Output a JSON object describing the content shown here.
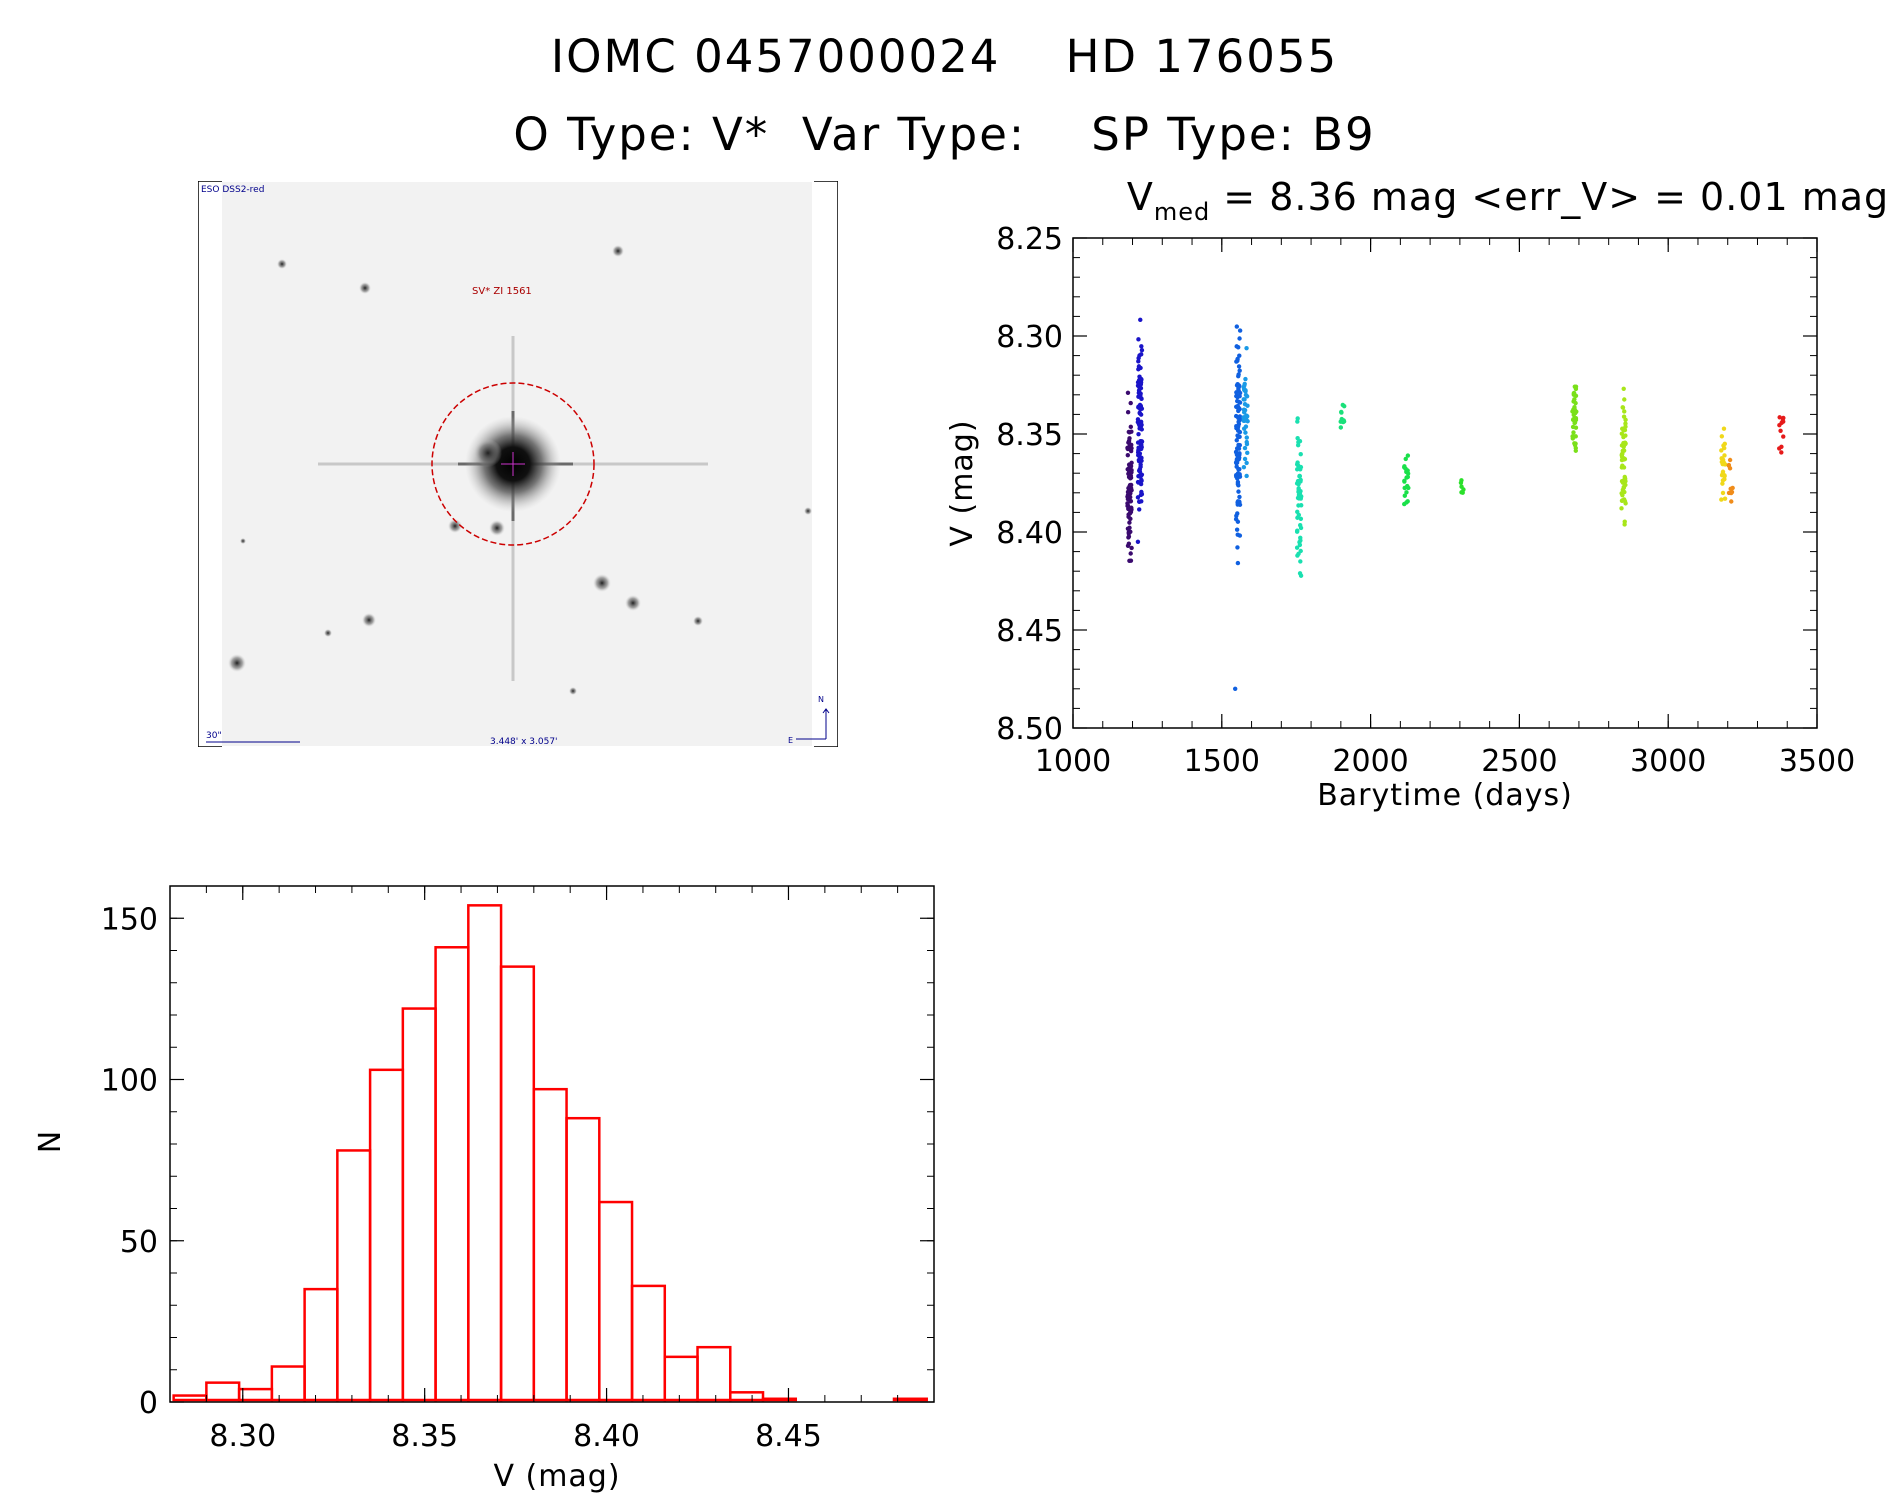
{
  "header": {
    "line1": "IOMC 0457000024    HD 176055",
    "line2": "O Type: V*  Var Type:    SP Type: B9"
  },
  "finder": {
    "survey_label": "ESO DSS2-red",
    "object_label": "SV* ZI 1561",
    "scale_label": "30\"",
    "fov_label": "3.448' x 3.057'",
    "north_label": "N",
    "east_label": "E"
  },
  "chart_data": [
    {
      "type": "scatter",
      "title_parts": {
        "symbol": "V",
        "subscript": "med",
        "rest": " = 8.36 mag <err_V> = 0.01 mag"
      },
      "xlabel": "Barytime (days)",
      "ylabel": "V (mag)",
      "xlim": [
        1000,
        3500
      ],
      "ylim": [
        8.25,
        8.5
      ],
      "y_inverted": true,
      "xticks": [
        1000,
        1500,
        2000,
        2500,
        3000,
        3500
      ],
      "yticks": [
        8.25,
        8.3,
        8.35,
        8.4,
        8.45,
        8.5
      ],
      "ytick_labels": [
        "8.25",
        "8.30",
        "8.35",
        "8.40",
        "8.45",
        "8.50"
      ],
      "color_mode": "rainbow-by-time",
      "clusters": [
        {
          "x": 1190,
          "ymin": 8.315,
          "ymax": 8.435,
          "n": 90,
          "color": "#3a0a6e"
        },
        {
          "x": 1225,
          "ymin": 8.285,
          "ymax": 8.41,
          "n": 110,
          "color": "#1a14c8"
        },
        {
          "x": 1555,
          "ymin": 8.28,
          "ymax": 8.425,
          "n": 110,
          "color": "#1060e0"
        },
        {
          "x": 1580,
          "ymin": 8.3,
          "ymax": 8.38,
          "n": 40,
          "color": "#1a9ae6"
        },
        {
          "x": 1760,
          "ymin": 8.325,
          "ymax": 8.44,
          "n": 55,
          "color": "#1ae0b0"
        },
        {
          "x": 1905,
          "ymin": 8.332,
          "ymax": 8.352,
          "n": 10,
          "color": "#1ae07a"
        },
        {
          "x": 2120,
          "ymin": 8.347,
          "ymax": 8.398,
          "n": 22,
          "color": "#1ae04a"
        },
        {
          "x": 2310,
          "ymin": 8.367,
          "ymax": 8.388,
          "n": 6,
          "color": "#2ae02a"
        },
        {
          "x": 2685,
          "ymin": 8.316,
          "ymax": 8.367,
          "n": 40,
          "color": "#7ae01a"
        },
        {
          "x": 2850,
          "ymin": 8.318,
          "ymax": 8.412,
          "n": 60,
          "color": "#a8e61a"
        },
        {
          "x": 3185,
          "ymin": 8.335,
          "ymax": 8.397,
          "n": 25,
          "color": "#f0d81a"
        },
        {
          "x": 3210,
          "ymin": 8.35,
          "ymax": 8.39,
          "n": 10,
          "color": "#f08c1a"
        },
        {
          "x": 3380,
          "ymin": 8.322,
          "ymax": 8.372,
          "n": 12,
          "color": "#e61a1a"
        }
      ],
      "outliers": [
        {
          "x": 1545,
          "y": 8.48,
          "color": "#1060e0"
        }
      ]
    },
    {
      "type": "bar",
      "xlabel": "V (mag)",
      "ylabel": "N",
      "xlim": [
        8.28,
        8.49
      ],
      "ylim": [
        0,
        160
      ],
      "xticks": [
        8.3,
        8.35,
        8.4,
        8.45
      ],
      "xtick_labels": [
        "8.30",
        "8.35",
        "8.40",
        "8.45"
      ],
      "yticks": [
        0,
        50,
        100,
        150
      ],
      "bin_start": 8.281,
      "bin_width": 0.009,
      "counts": [
        2,
        6,
        4,
        11,
        35,
        78,
        103,
        122,
        141,
        154,
        135,
        97,
        88,
        62,
        36,
        14,
        17,
        3,
        1,
        0,
        0,
        0,
        1
      ],
      "color": "#ff0000"
    }
  ]
}
